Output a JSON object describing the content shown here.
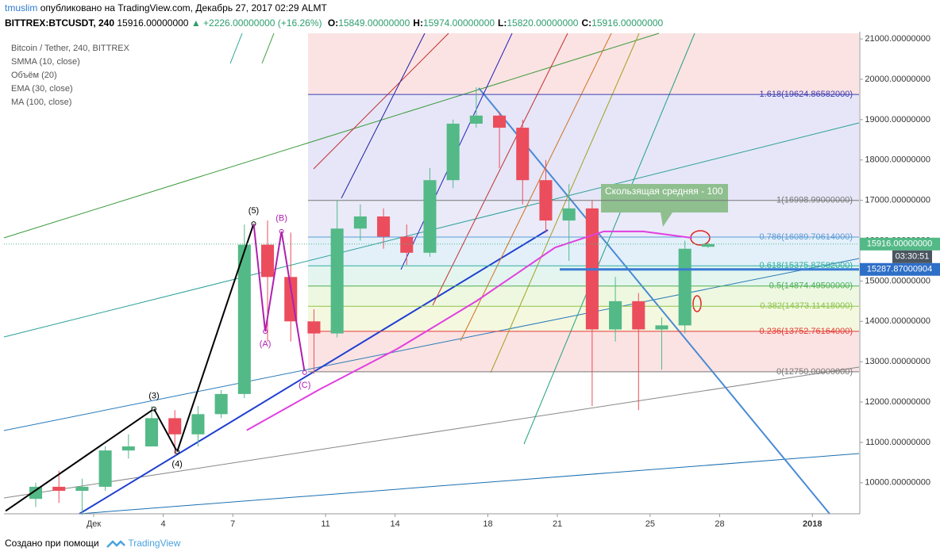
{
  "header": {
    "author": "tmuslim",
    "published": "опубликовано на TradingView.com, Декабрь 27, 2017 02:29 ALMT",
    "symbol": "BITTREX:BTCUSDT, 240",
    "last": "15916.00000000",
    "change": "+2226.00000000 (+16.26%)",
    "ohlc": [
      {
        "key": "O:",
        "value": "15849.00000000"
      },
      {
        "key": "H:",
        "value": "15974.00000000"
      },
      {
        "key": "L:",
        "value": "15820.00000000"
      },
      {
        "key": "C:",
        "value": "15916.00000000"
      }
    ]
  },
  "chart_data": {
    "type": "candlestick",
    "title": "Bitcoin / Tether, 240, BITTREX",
    "indicators": [
      "SMMA (10, close)",
      "Объём (20)",
      "EMA (30, close)",
      "MA (100, close)"
    ],
    "x": [
      -2,
      -1,
      0,
      1,
      2,
      3,
      4,
      5,
      6,
      7,
      8,
      9,
      10,
      11,
      12,
      13,
      14,
      15,
      16,
      17,
      18,
      19,
      20,
      21,
      22,
      23,
      24,
      25,
      26,
      27
    ],
    "open": [
      9600,
      9900,
      9800,
      9900,
      10800,
      10900,
      11600,
      11200,
      11700,
      12200,
      15900,
      15100,
      14000,
      13700,
      16300,
      16600,
      16100,
      15700,
      17500,
      18900,
      19100,
      18800,
      17500,
      16500,
      16800,
      13800,
      14500,
      13800,
      13900,
      15849
    ],
    "high": [
      10000,
      10300,
      10100,
      10900,
      11200,
      11900,
      11800,
      11900,
      12300,
      16400,
      16500,
      16200,
      14300,
      17000,
      16900,
      16800,
      16400,
      17800,
      19000,
      19800,
      19200,
      19000,
      18000,
      17400,
      17000,
      15100,
      14700,
      14100,
      16000,
      15974
    ],
    "low": [
      9400,
      9500,
      9200,
      9800,
      10600,
      10900,
      10700,
      10900,
      11600,
      12100,
      13500,
      13500,
      12700,
      13600,
      16000,
      15800,
      15400,
      15600,
      17300,
      18800,
      17800,
      16900,
      16200,
      15500,
      11900,
      13500,
      11800,
      12800,
      13700,
      15820
    ],
    "close": [
      9900,
      9800,
      9900,
      10800,
      10900,
      11600,
      11200,
      11700,
      12200,
      15900,
      15100,
      14000,
      13700,
      16300,
      16600,
      16100,
      15700,
      17500,
      18900,
      19100,
      18800,
      17500,
      16500,
      16800,
      13800,
      14500,
      13800,
      13900,
      15800,
      15916
    ],
    "up_color": "#53b987",
    "down_color": "#eb4d5c",
    "ma_line": {
      "color": "#e040e0",
      "x": [
        7.6,
        10.7,
        14.1,
        17.5,
        20.9,
        23,
        24.7,
        26.8
      ],
      "values": [
        11300,
        12300,
        13320,
        14500,
        15830,
        16230,
        16230,
        16070
      ]
    },
    "fib_levels": [
      {
        "value": 19624.86582,
        "label": "1.618(19624.86582000)",
        "color": "#3f3fb0"
      },
      {
        "value": 16998.99,
        "label": "1(16998.99000000)",
        "color": "#777777"
      },
      {
        "value": 16089.70614,
        "label": "0.786(16089.70614000)",
        "color": "#5b9bd5"
      },
      {
        "value": 15375.87582,
        "label": "0.618(15375.87582000)",
        "color": "#2fb0a0"
      },
      {
        "value": 14874.495,
        "label": "0.5(14874.49500000)",
        "color": "#4caf50"
      },
      {
        "value": 14373.11418,
        "label": "0.382(14373.11418000)",
        "color": "#8bc34a"
      },
      {
        "value": 13752.76164,
        "label": "0.236(13752.76164000)",
        "color": "#e53935"
      },
      {
        "value": 12750,
        "label": "0(12750.00000000)",
        "color": "#777777"
      }
    ],
    "waves": [
      {
        "label": null,
        "x": -2.8,
        "value": 9300,
        "color": "#000000"
      },
      {
        "label": "(3)",
        "x": 3.6,
        "value": 11830,
        "color": "#000000"
      },
      {
        "label": "(4)",
        "x": 4.6,
        "value": 10770,
        "color": "#000000"
      },
      {
        "label": "(5)",
        "x": 7.9,
        "value": 16420,
        "color": "#000000"
      },
      {
        "label": "(A)",
        "x": 8.4,
        "value": 13750,
        "color": "#b020b0"
      },
      {
        "label": "(B)",
        "x": 9.1,
        "value": 16230,
        "color": "#b020b0"
      },
      {
        "label": "(C)",
        "x": 10.1,
        "value": 12730,
        "color": "#b020b0"
      }
    ],
    "annotation": "Скользящая средняя - 100",
    "price_marker": {
      "value": 15916,
      "label": "15916.00000000",
      "countdown": "03:30:51"
    },
    "level_marker": {
      "value": 15287.87000904,
      "label": "15287.87000904"
    },
    "xlim": [
      -2.87,
      34.01
    ],
    "ylim": [
      9230,
      21140
    ],
    "xticks": [
      {
        "value": 1,
        "label": "Дек"
      },
      4,
      7,
      11,
      14,
      18,
      21,
      25,
      28,
      {
        "value": 32,
        "label": "2018"
      }
    ],
    "yticks": [
      {
        "value": 10000,
        "label": "10000.00000000"
      },
      {
        "value": 11000,
        "label": "11000.00000000"
      },
      {
        "value": 12000,
        "label": "12000.00000000"
      },
      {
        "value": 13000,
        "label": "13000.00000000"
      },
      {
        "value": 14000,
        "label": "14000.00000000"
      },
      {
        "value": 15000,
        "label": "15000.00000000"
      },
      {
        "value": 16000,
        "label": "16000.00000000"
      },
      {
        "value": 17000,
        "label": "17000.00000000"
      },
      {
        "value": 18000,
        "label": "18000.00000000"
      },
      {
        "value": 19000,
        "label": "19000.00000000"
      },
      {
        "value": 20000,
        "label": "20000.00000000"
      },
      {
        "value": 21000,
        "label": "21000.00000000"
      }
    ]
  },
  "footer": {
    "text": "Создано при помощи",
    "brand": "TradingView"
  }
}
